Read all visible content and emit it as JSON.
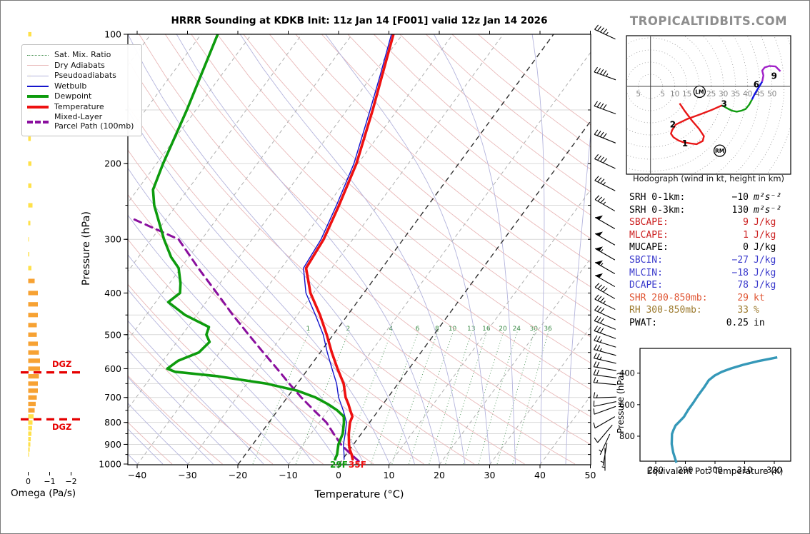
{
  "title": "HRRR Sounding at KDKB Init: 11z Jan 14 [F001] valid 12z Jan 14 2026",
  "watermark": "TROPICALTIDBITS.COM",
  "palette": {
    "temperature": "#ee1111",
    "dewpoint": "#0d9b0d",
    "wetbulb": "#1414cc",
    "parcel": "#8a0f9e",
    "dry_adiabat": "#e9b9b9",
    "pseudoadiabat": "#b4b4dd",
    "mix_ratio": "#3a8a46",
    "isotherm": "#b0b0b0",
    "isotherm_bold": "#333333",
    "grid": "#d9d9d9",
    "theta_e": "#3598b8",
    "dgz": "#e60000",
    "omega_orange": "#f7a233",
    "omega_yellow": "#ffe14a",
    "hodo_red": "#e81717",
    "hodo_green": "#0f9b0f",
    "hodo_blue": "#1414e0",
    "hodo_purple": "#a020c8",
    "barb": "#000000"
  },
  "legend": {
    "items": [
      {
        "label": "Sat. Mix. Ratio",
        "style": "dotted",
        "color": "#3a8a46"
      },
      {
        "label": "Dry Adiabats",
        "style": "thin",
        "color": "#e9b9b9"
      },
      {
        "label": "Pseudoadiabats",
        "style": "thin",
        "color": "#b4b4dd"
      },
      {
        "label": "Wetbulb",
        "style": "medium",
        "color": "#1414cc"
      },
      {
        "label": "Dewpoint",
        "style": "thick",
        "color": "#0d9b0d"
      },
      {
        "label": "Temperature",
        "style": "thick",
        "color": "#ee1111"
      },
      {
        "label": "Mixed-Layer",
        "label2": "Parcel Path (100mb)",
        "style": "dashed",
        "color": "#8a0f9e"
      }
    ]
  },
  "stats": {
    "rows": [
      {
        "label": "SRH 0-1km:",
        "value": "-10",
        "unit": "m²s⁻²",
        "color": "#000000"
      },
      {
        "label": "SRH 0-3km:",
        "value": "130",
        "unit": "m²s⁻²",
        "color": "#000000"
      },
      {
        "label": "SBCAPE:",
        "value": "9",
        "unit": "J/kg",
        "color": "#cc2222"
      },
      {
        "label": "MLCAPE:",
        "value": "1",
        "unit": "J/kg",
        "color": "#cc2222"
      },
      {
        "label": "MUCAPE:",
        "value": "0",
        "unit": "J/kg",
        "color": "#000000"
      },
      {
        "label": "SBCIN:",
        "value": "-27",
        "unit": "J/kg",
        "color": "#3939cc"
      },
      {
        "label": "MLCIN:",
        "value": "-18",
        "unit": "J/kg",
        "color": "#3939cc"
      },
      {
        "label": "DCAPE:",
        "value": "78",
        "unit": "J/kg",
        "color": "#3939cc"
      },
      {
        "label": "SHR 200-850mb:",
        "value": "29",
        "unit": "kt",
        "color": "#e05533"
      },
      {
        "label": "RH 300-850mb:",
        "value": "33",
        "unit": "%",
        "color": "#9c7a2e"
      },
      {
        "label": "PWAT:",
        "value": "0.25",
        "unit": "in",
        "color": "#000000"
      }
    ]
  },
  "chart_data": [
    {
      "id": "skewt",
      "type": "line",
      "xlabel": "Temperature (°C)",
      "ylabel": "Pressure (hPa)",
      "x_ticks": [
        -40,
        -30,
        -20,
        -10,
        0,
        10,
        20,
        30,
        40,
        50
      ],
      "y_ticks": [
        100,
        200,
        300,
        400,
        500,
        600,
        700,
        800,
        900,
        1000
      ],
      "xlim": [
        -41.5,
        50
      ],
      "ylim": [
        1000,
        100
      ],
      "mixing_ratio_labels": [
        1,
        2,
        4,
        6,
        8,
        10,
        13,
        16,
        20,
        24,
        30,
        36
      ],
      "surface_labels": [
        {
          "text": "29F",
          "color": "#0d9b0d"
        },
        {
          "text": "35F",
          "color": "#ee1111"
        }
      ],
      "series": [
        {
          "name": "Temperature",
          "points": [
            [
              975,
              2.0
            ],
            [
              950,
              1.1
            ],
            [
              925,
              0.0
            ],
            [
              900,
              -0.9
            ],
            [
              850,
              -2.5
            ],
            [
              800,
              -3.9
            ],
            [
              775,
              -4.3
            ],
            [
              750,
              -5.6
            ],
            [
              725,
              -6.9
            ],
            [
              700,
              -8.4
            ],
            [
              650,
              -10.8
            ],
            [
              600,
              -14.2
            ],
            [
              550,
              -17.7
            ],
            [
              500,
              -21.3
            ],
            [
              450,
              -25.5
            ],
            [
              400,
              -30.6
            ],
            [
              350,
              -35.1
            ],
            [
              300,
              -35.8
            ],
            [
              250,
              -37.7
            ],
            [
              200,
              -40.3
            ],
            [
              150,
              -44.9
            ],
            [
              125,
              -48.0
            ],
            [
              100,
              -51.8
            ]
          ]
        },
        {
          "name": "Dewpoint",
          "points": [
            [
              975,
              -1.5
            ],
            [
              950,
              -1.8
            ],
            [
              925,
              -2.4
            ],
            [
              900,
              -3.0
            ],
            [
              850,
              -3.7
            ],
            [
              800,
              -5.1
            ],
            [
              775,
              -6.0
            ],
            [
              750,
              -8.2
            ],
            [
              725,
              -11.0
            ],
            [
              700,
              -14.4
            ],
            [
              675,
              -19.0
            ],
            [
              650,
              -26.1
            ],
            [
              625,
              -36.8
            ],
            [
              610,
              -46.0
            ],
            [
              600,
              -48.0
            ],
            [
              575,
              -47.0
            ],
            [
              550,
              -44.1
            ],
            [
              520,
              -43.5
            ],
            [
              500,
              -45.2
            ],
            [
              480,
              -45.8
            ],
            [
              450,
              -52.3
            ],
            [
              420,
              -57.5
            ],
            [
              400,
              -56.5
            ],
            [
              380,
              -57.8
            ],
            [
              350,
              -60.4
            ],
            [
              330,
              -63.5
            ],
            [
              300,
              -67.5
            ],
            [
              250,
              -74.4
            ],
            [
              230,
              -76.9
            ],
            [
              200,
              -78.7
            ],
            [
              150,
              -81.8
            ],
            [
              125,
              -84.0
            ],
            [
              100,
              -86.7
            ]
          ]
        },
        {
          "name": "Wetbulb",
          "points": [
            [
              975,
              0.3
            ],
            [
              950,
              -0.4
            ],
            [
              925,
              -1.2
            ],
            [
              900,
              -2.0
            ],
            [
              850,
              -3.2
            ],
            [
              800,
              -4.6
            ],
            [
              750,
              -7.0
            ],
            [
              700,
              -9.8
            ],
            [
              650,
              -12.2
            ],
            [
              600,
              -15.3
            ],
            [
              550,
              -18.6
            ],
            [
              500,
              -22.0
            ],
            [
              450,
              -26.4
            ],
            [
              400,
              -31.5
            ],
            [
              350,
              -35.6
            ],
            [
              300,
              -36.3
            ],
            [
              250,
              -38.2
            ],
            [
              200,
              -40.8
            ],
            [
              150,
              -45.4
            ],
            [
              125,
              -48.4
            ],
            [
              100,
              -52.2
            ]
          ]
        },
        {
          "name": "Mixed-Layer Parcel Path (100mb)",
          "points": [
            [
              985,
              3.5
            ],
            [
              950,
              1.0
            ],
            [
              900,
              -2.5
            ],
            [
              850,
              -5.5
            ],
            [
              800,
              -8.6
            ],
            [
              750,
              -12.8
            ],
            [
              700,
              -17.2
            ],
            [
              650,
              -21.6
            ],
            [
              600,
              -26.2
            ],
            [
              550,
              -31.3
            ],
            [
              500,
              -36.8
            ],
            [
              450,
              -42.8
            ],
            [
              400,
              -49.2
            ],
            [
              350,
              -56.5
            ],
            [
              300,
              -64.6
            ],
            [
              268,
              -77.0
            ]
          ]
        }
      ],
      "wind_barbs": [
        [
          100,
          45,
          295
        ],
        [
          125,
          45,
          290
        ],
        [
          150,
          40,
          290
        ],
        [
          175,
          40,
          292
        ],
        [
          200,
          40,
          295
        ],
        [
          225,
          35,
          297
        ],
        [
          250,
          35,
          300
        ],
        [
          275,
          50,
          300
        ],
        [
          300,
          50,
          300
        ],
        [
          325,
          55,
          300
        ],
        [
          350,
          55,
          300
        ],
        [
          375,
          50,
          300
        ],
        [
          400,
          40,
          300
        ],
        [
          425,
          35,
          297
        ],
        [
          450,
          30,
          295
        ],
        [
          475,
          30,
          292
        ],
        [
          500,
          30,
          290
        ],
        [
          525,
          25,
          287
        ],
        [
          550,
          25,
          285
        ],
        [
          575,
          25,
          283
        ],
        [
          600,
          20,
          280
        ],
        [
          625,
          20,
          278
        ],
        [
          650,
          15,
          275
        ],
        [
          700,
          15,
          268
        ],
        [
          725,
          10,
          258
        ],
        [
          750,
          10,
          250
        ],
        [
          800,
          10,
          240
        ],
        [
          850,
          10,
          220
        ],
        [
          900,
          5,
          205
        ],
        [
          950,
          5,
          190
        ],
        [
          975,
          5,
          180
        ]
      ]
    },
    {
      "id": "hodograph",
      "type": "line",
      "caption": "Hodograph (wind in kt, height in km)",
      "ring_step_kt": 5,
      "ring_labels_right": [
        5,
        10,
        15,
        20,
        25,
        30,
        35,
        40,
        45,
        50
      ],
      "ring_label_left": 5,
      "segments": [
        {
          "name": "0-3km",
          "color_key": "hodo_red",
          "points": [
            [
              12,
              -7
            ],
            [
              14,
              -10
            ],
            [
              17,
              -14
            ],
            [
              20,
              -17.5
            ],
            [
              22,
              -20.5
            ],
            [
              21.5,
              -22.5
            ],
            [
              19,
              -23.8
            ],
            [
              16.5,
              -23.5
            ],
            [
              13.5,
              -23
            ],
            [
              11.5,
              -22.3
            ],
            [
              9.5,
              -21
            ],
            [
              8.4,
              -19.5
            ],
            [
              8.9,
              -18
            ],
            [
              10.4,
              -15.7
            ],
            [
              15,
              -13.5
            ],
            [
              20,
              -11.7
            ],
            [
              25,
              -9.8
            ],
            [
              29.5,
              -7.8
            ]
          ]
        },
        {
          "name": "3-6km",
          "color_key": "hodo_green",
          "points": [
            [
              29.5,
              -7.8
            ],
            [
              31.5,
              -9
            ],
            [
              33.5,
              -10
            ],
            [
              35.5,
              -10.4
            ],
            [
              37.5,
              -10
            ],
            [
              39.2,
              -9.3
            ],
            [
              40.7,
              -7.4
            ],
            [
              41.8,
              -5.4
            ]
          ]
        },
        {
          "name": "6-9km",
          "color_key": "hodo_blue",
          "points": [
            [
              41.8,
              -5.4
            ],
            [
              43,
              -3
            ],
            [
              44.5,
              -0.5
            ],
            [
              46,
              2
            ]
          ]
        },
        {
          "name": "9km+",
          "color_key": "hodo_purple",
          "points": [
            [
              46,
              2
            ],
            [
              46.5,
              4.5
            ],
            [
              46,
              6.5
            ],
            [
              47,
              7.8
            ],
            [
              49,
              8.4
            ],
            [
              51.5,
              8.2
            ],
            [
              53.5,
              6.2
            ]
          ]
        }
      ],
      "height_labels": [
        {
          "text": "1",
          "u": 14.2,
          "v": -23.6
        },
        {
          "text": "2",
          "u": 9.2,
          "v": -15.7
        },
        {
          "text": "3",
          "u": 30.3,
          "v": -7.2
        },
        {
          "text": "6",
          "u": 43.6,
          "v": 0.8
        },
        {
          "text": "9",
          "u": 50.9,
          "v": 4.2
        }
      ],
      "markers": [
        {
          "text": "LM",
          "u": 20.2,
          "v": -2.2
        },
        {
          "text": "RM",
          "u": 28.5,
          "v": -26.5
        }
      ]
    },
    {
      "id": "theta_e",
      "type": "line",
      "xlabel": "Equivalent Pot. Temperature (K)",
      "ylabel": "Pressure (hPa)",
      "x_ticks": [
        280,
        290,
        300,
        310,
        320
      ],
      "y_ticks": [
        400,
        600,
        800
      ],
      "points": [
        [
          968,
          287.0
        ],
        [
          904,
          285.9
        ],
        [
          850,
          285.4
        ],
        [
          786,
          285.5
        ],
        [
          760,
          286.0
        ],
        [
          732,
          286.7
        ],
        [
          709,
          287.9
        ],
        [
          678,
          289.5
        ],
        [
          632,
          291.0
        ],
        [
          587,
          292.7
        ],
        [
          542,
          294.3
        ],
        [
          491,
          296.3
        ],
        [
          445,
          297.9
        ],
        [
          415,
          299.9
        ],
        [
          392,
          302.3
        ],
        [
          370,
          305.4
        ],
        [
          347,
          309.5
        ],
        [
          325,
          314.3
        ],
        [
          310,
          318.3
        ],
        [
          300,
          321.0
        ]
      ]
    },
    {
      "id": "omega",
      "type": "bar",
      "xlabel": "Omega (Pa/s)",
      "x_ticks": [
        0,
        -1,
        -2
      ],
      "dgz_label": "DGZ",
      "dgz_pressures": [
        612,
        787
      ],
      "bars": [
        [
          100,
          -0.15
        ],
        [
          125,
          -0.12
        ],
        [
          150,
          -0.15
        ],
        [
          175,
          -0.12
        ],
        [
          200,
          -0.15
        ],
        [
          225,
          -0.15
        ],
        [
          250,
          -0.2
        ],
        [
          275,
          -0.1
        ],
        [
          300,
          -0.02
        ],
        [
          325,
          -0.05
        ],
        [
          350,
          -0.15
        ],
        [
          375,
          -0.3
        ],
        [
          400,
          -0.45
        ],
        [
          425,
          -0.45
        ],
        [
          450,
          -0.45
        ],
        [
          475,
          -0.4
        ],
        [
          500,
          -0.4
        ],
        [
          525,
          -0.45
        ],
        [
          550,
          -0.5
        ],
        [
          575,
          -0.55
        ],
        [
          600,
          -0.55
        ],
        [
          625,
          -0.5
        ],
        [
          650,
          -0.45
        ],
        [
          675,
          -0.45
        ],
        [
          700,
          -0.4
        ],
        [
          725,
          -0.35
        ],
        [
          750,
          -0.3
        ],
        [
          775,
          -0.25
        ],
        [
          800,
          -0.2
        ],
        [
          825,
          -0.18
        ],
        [
          850,
          -0.15
        ],
        [
          875,
          -0.12
        ],
        [
          900,
          -0.1
        ],
        [
          925,
          -0.07
        ],
        [
          950,
          -0.04
        ]
      ]
    }
  ]
}
